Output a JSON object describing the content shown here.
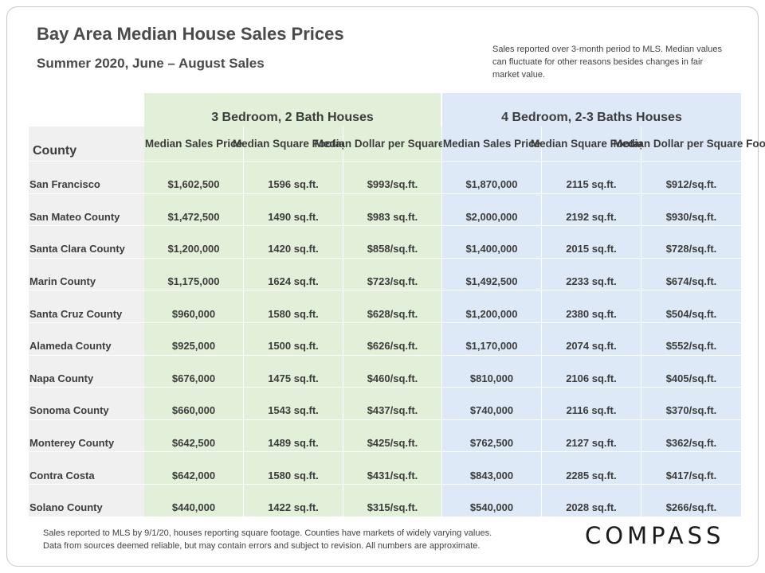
{
  "title": "Bay Area Median House Sales Prices",
  "subtitle": "Summer 2020, June – August Sales",
  "note": "Sales reported over 3-month period to MLS. Median values can fluctuate for other reasons besides changes in fair market value.",
  "groups": {
    "three_bed": "3 Bedroom, 2 Bath Houses",
    "four_bed": "4 Bedroom, 2-3 Baths Houses"
  },
  "columns": {
    "county": "County",
    "price": "Median Sales Price",
    "sqft": "Median Square Footage",
    "dollar_sqft": "Median Dollar per Square Foot"
  },
  "rows": [
    {
      "county": "San Francisco",
      "p3": "$1,602,500",
      "s3": "1596 sq.ft.",
      "d3": "$993/sq.ft.",
      "p4": "$1,870,000",
      "s4": "2115 sq.ft.",
      "d4": "$912/sq.ft."
    },
    {
      "county": "San Mateo County",
      "p3": "$1,472,500",
      "s3": "1490 sq.ft.",
      "d3": "$983 sq.ft.",
      "p4": "$2,000,000",
      "s4": "2192 sq.ft.",
      "d4": "$930/sq.ft."
    },
    {
      "county": "Santa Clara County",
      "p3": "$1,200,000",
      "s3": "1420 sq.ft.",
      "d3": "$858/sq.ft.",
      "p4": "$1,400,000",
      "s4": "2015 sq.ft.",
      "d4": "$728/sq.ft."
    },
    {
      "county": "Marin County",
      "p3": "$1,175,000",
      "s3": "1624 sq.ft.",
      "d3": "$723/sq.ft.",
      "p4": "$1,492,500",
      "s4": "2233 sq.ft.",
      "d4": "$674/sq.ft."
    },
    {
      "county": "Santa Cruz County",
      "p3": "$960,000",
      "s3": "1580 sq.ft.",
      "d3": "$628/sq.ft.",
      "p4": "$1,200,000",
      "s4": "2380 sq.ft.",
      "d4": "$504/sq.ft."
    },
    {
      "county": "Alameda County",
      "p3": "$925,000",
      "s3": "1500 sq.ft.",
      "d3": "$626/sq.ft.",
      "p4": "$1,170,000",
      "s4": "2074 sq.ft.",
      "d4": "$552/sq.ft."
    },
    {
      "county": "Napa County",
      "p3": "$676,000",
      "s3": "1475 sq.ft.",
      "d3": "$460/sq.ft.",
      "p4": "$810,000",
      "s4": "2106 sq.ft.",
      "d4": "$405/sq.ft."
    },
    {
      "county": "Sonoma County",
      "p3": "$660,000",
      "s3": "1543 sq.ft.",
      "d3": "$437/sq.ft.",
      "p4": "$740,000",
      "s4": "2116 sq.ft.",
      "d4": "$370/sq.ft."
    },
    {
      "county": "Monterey County",
      "p3": "$642,500",
      "s3": "1489 sq.ft.",
      "d3": "$425/sq.ft.",
      "p4": "$762,500",
      "s4": "2127 sq.ft.",
      "d4": "$362/sq.ft."
    },
    {
      "county": "Contra Costa",
      "p3": "$642,000",
      "s3": "1580 sq.ft.",
      "d3": "$431/sq.ft.",
      "p4": "$843,000",
      "s4": "2285 sq.ft.",
      "d4": "$417/sq.ft."
    },
    {
      "county": "Solano County",
      "p3": "$440,000",
      "s3": "1422 sq.ft.",
      "d3": "$315/sq.ft.",
      "p4": "$540,000",
      "s4": "2028 sq.ft.",
      "d4": "$266/sq.ft."
    }
  ],
  "footer": {
    "line1": "Sales reported to MLS by 9/1/20, houses reporting square footage. Counties have markets of widely varying values.",
    "line2": "Data from sources deemed reliable, but may contain errors and subject to revision.  All numbers are approximate."
  },
  "logo": "COMPASS",
  "colors": {
    "green_bg": "#e2efd9",
    "blue_bg": "#dde9f6",
    "county_bg": "#f0f0f0"
  }
}
